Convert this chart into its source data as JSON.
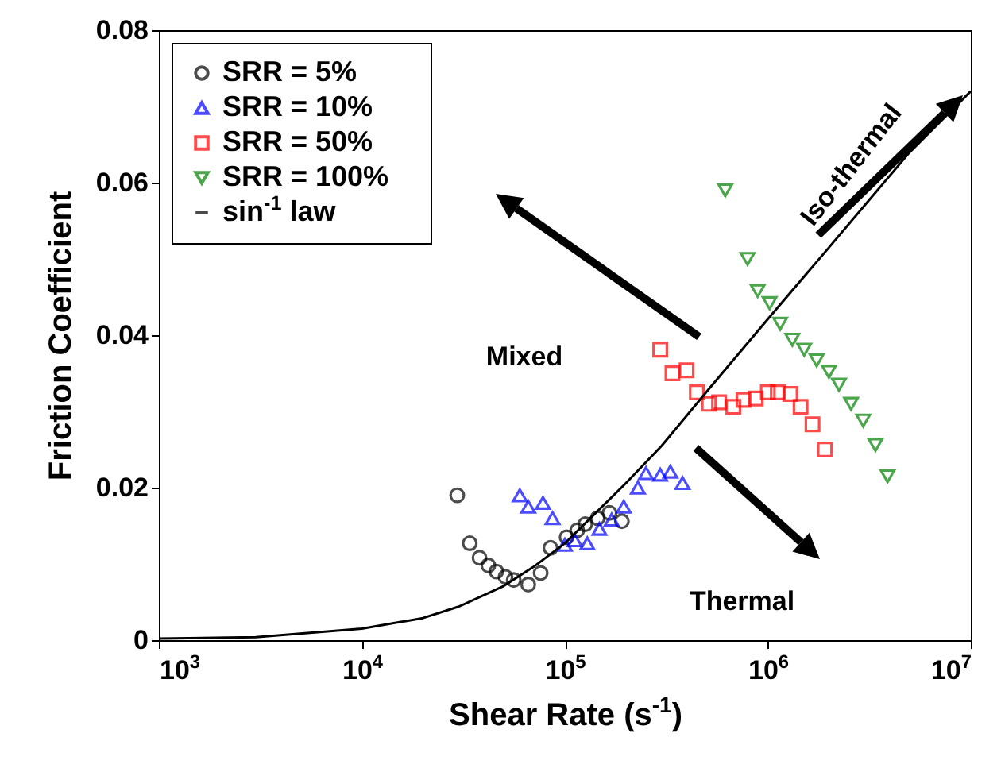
{
  "chart_data": {
    "type": "scatter",
    "xlabel": "Shear Rate (s$^{-1}$)",
    "ylabel": "Friction Coefficient",
    "log": "x",
    "xlim": [
      1000,
      10000000
    ],
    "ylim": [
      0,
      0.08
    ],
    "xticks": [
      {
        "value": 1000,
        "label": "10$^{3}$"
      },
      {
        "value": 10000,
        "label": "10$^{4}$"
      },
      {
        "value": 100000,
        "label": "10$^{5}$"
      },
      {
        "value": 1000000,
        "label": "10$^{6}$"
      },
      {
        "value": 10000000,
        "label": "10$^{7}$"
      }
    ],
    "yticks": [
      0,
      0.02,
      0.04,
      0.06,
      0.08
    ],
    "grid": false,
    "legend": "top left",
    "annotations": [
      "Mixed",
      "Thermal",
      "Iso-thermal"
    ],
    "series": [
      {
        "name": "SRR = 5%",
        "color": "#000000",
        "marker": "circle",
        "x": [
          29500,
          34000,
          38000,
          42000,
          46000,
          51000,
          56000,
          66000,
          76000,
          85000,
          102000,
          115000,
          126000,
          145000,
          166000,
          191000
        ],
        "values": [
          0.019,
          0.0127,
          0.0108,
          0.0098,
          0.009,
          0.0083,
          0.0079,
          0.0073,
          0.0088,
          0.0121,
          0.0135,
          0.0144,
          0.0152,
          0.016,
          0.0167,
          0.0156
        ]
      },
      {
        "name": "SRR = 10%",
        "color": "#0000ff",
        "marker": "triangle",
        "x": [
          60000,
          66000,
          78000,
          87000,
          100000,
          112000,
          129000,
          148000,
          170000,
          195000,
          229000,
          251000,
          295000,
          331000,
          380000
        ],
        "values": [
          0.019,
          0.0175,
          0.018,
          0.016,
          0.0125,
          0.0131,
          0.0127,
          0.0146,
          0.0158,
          0.0175,
          0.02,
          0.0219,
          0.0217,
          0.0221,
          0.0206
        ]
      },
      {
        "name": "SRR = 50%",
        "color": "#ff0000",
        "marker": "square",
        "x": [
          295000,
          339000,
          398000,
          447000,
          513000,
          575000,
          676000,
          759000,
          871000,
          1000000,
          1120000,
          1290000,
          1450000,
          1660000,
          1910000
        ],
        "values": [
          0.0381,
          0.035,
          0.0354,
          0.0325,
          0.031,
          0.0312,
          0.0306,
          0.0315,
          0.0317,
          0.0325,
          0.0325,
          0.0323,
          0.0306,
          0.0283,
          0.025
        ]
      },
      {
        "name": "SRR = 100%",
        "color": "#008000",
        "marker": "triangle-down",
        "x": [
          617000,
          794000,
          891000,
          1020000,
          1150000,
          1320000,
          1510000,
          1740000,
          2000000,
          2240000,
          2570000,
          2950000,
          3390000,
          3890000
        ],
        "values": [
          0.059,
          0.05,
          0.0458,
          0.0442,
          0.0415,
          0.0394,
          0.0381,
          0.0367,
          0.0352,
          0.0335,
          0.031,
          0.0288,
          0.0256,
          0.0215
        ]
      },
      {
        "name": "sin$^{-1}$ law",
        "type": "line",
        "color": "#000000",
        "marker": "none",
        "line_style": "solid",
        "x": [
          1000,
          3000,
          10000,
          20000,
          30000,
          50000,
          70000,
          100000,
          200000,
          300000,
          500000,
          1000000,
          2000000,
          5000000,
          10000000
        ],
        "values": [
          0.0002,
          0.0004,
          0.0015,
          0.0029,
          0.0044,
          0.0071,
          0.0096,
          0.0127,
          0.0206,
          0.0255,
          0.0326,
          0.0421,
          0.0515,
          0.064,
          0.072
        ]
      }
    ]
  }
}
